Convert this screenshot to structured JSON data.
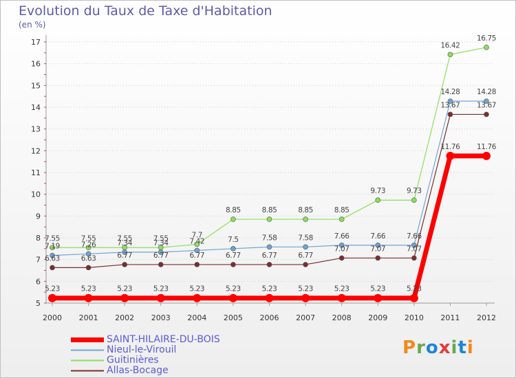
{
  "header": {
    "title": "Evolution du Taux de Taxe d'Habitation",
    "subtitle": "(en %)"
  },
  "logo": {
    "text": "Proxiti"
  },
  "chart_data": {
    "type": "line",
    "title": "Evolution du Taux de Taxe d'Habitation",
    "subtitle": "(en %)",
    "xlabel": "",
    "ylabel": "",
    "categories": [
      "2000",
      "2001",
      "2002",
      "2003",
      "2004",
      "2005",
      "2006",
      "2007",
      "2008",
      "2009",
      "2010",
      "2011",
      "2012"
    ],
    "ylim": [
      5,
      17
    ],
    "yticks": [
      5,
      6,
      7,
      8,
      9,
      10,
      11,
      12,
      13,
      14,
      15,
      16,
      17
    ],
    "grid": "dotted horizontal",
    "legend_position": "bottom-left",
    "series": [
      {
        "name": "SAINT-HILAIRE-DU-BOIS",
        "color": "#ff0000",
        "values": [
          5.23,
          5.23,
          5.23,
          5.23,
          5.23,
          5.23,
          5.23,
          5.23,
          5.23,
          5.23,
          5.23,
          11.76,
          11.76
        ]
      },
      {
        "name": "Nieul-le-Virouil",
        "color": "#6fa3d4",
        "values": [
          7.19,
          7.26,
          7.34,
          7.34,
          7.42,
          7.5,
          7.58,
          7.58,
          7.66,
          7.66,
          7.66,
          14.28,
          14.28
        ]
      },
      {
        "name": "Guitinières",
        "color": "#8dde5a",
        "values": [
          7.55,
          7.55,
          7.55,
          7.55,
          7.7,
          8.85,
          8.85,
          8.85,
          8.85,
          9.73,
          9.73,
          16.42,
          16.75
        ]
      },
      {
        "name": "Allas-Bocage",
        "color": "#7a2e2e",
        "values": [
          6.63,
          6.63,
          6.77,
          6.77,
          6.77,
          6.77,
          6.77,
          6.77,
          7.07,
          7.07,
          7.07,
          13.67,
          13.67
        ]
      }
    ]
  }
}
